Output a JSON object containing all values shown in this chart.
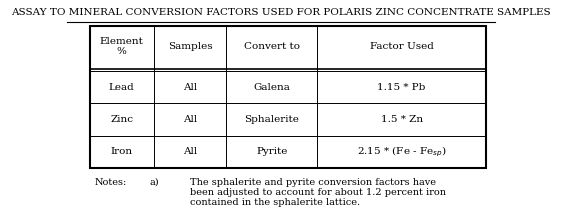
{
  "title": "ASSAY TO MINERAL CONVERSION FACTORS USED FOR POLARIS ZINC CONCENTRATE SAMPLES",
  "col_headers": [
    "Element\n%",
    "Samples",
    "Convert to",
    "Factor Used"
  ],
  "rows": [
    [
      "Lead",
      "All",
      "Galena",
      "1.15 * Pb"
    ],
    [
      "Zinc",
      "All",
      "Sphalerite",
      "1.5 * Zn"
    ],
    [
      "Iron",
      "All",
      "Pyrite",
      "2.15 * (Fe - Fe$_{sp}$)"
    ]
  ],
  "note_label": "Notes:",
  "note_letter": "a)",
  "note_text": "The sphalerite and pyrite conversion factors have\nbeen adjusted to account for about 1.2 percent iron\ncontained in the sphalerite lattice.",
  "bg_color": "#ffffff",
  "text_color": "#000000",
  "title_fontsize": 7.5,
  "table_fontsize": 7.5,
  "note_fontsize": 7.0
}
